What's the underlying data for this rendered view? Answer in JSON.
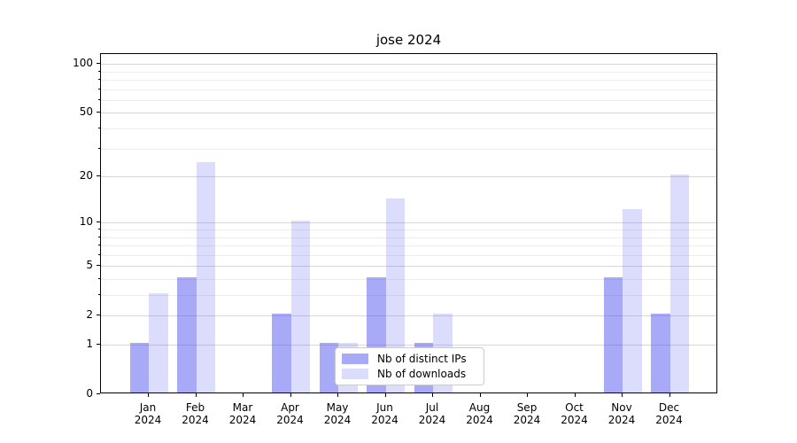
{
  "chart_data": {
    "type": "bar",
    "title": "jose 2024",
    "categories": [
      "Jan 2024",
      "Feb 2024",
      "Mar 2024",
      "Apr 2024",
      "May 2024",
      "Jun 2024",
      "Jul 2024",
      "Aug 2024",
      "Sep 2024",
      "Oct 2024",
      "Nov 2024",
      "Dec 2024"
    ],
    "series": [
      {
        "name": "Nb of distinct IPs",
        "values": [
          1,
          4,
          0,
          2,
          1,
          4,
          1,
          0,
          0,
          0,
          4,
          2
        ],
        "color": "rgba(81,85,241,0.5)"
      },
      {
        "name": "Nb of downloads",
        "values": [
          3,
          24,
          0,
          10,
          1,
          14,
          2,
          0,
          0,
          0,
          12,
          20
        ],
        "color": "rgba(81,85,241,0.2)"
      }
    ],
    "yscale": "log1p",
    "y_ticks": [
      0,
      1,
      2,
      5,
      10,
      20,
      50,
      100
    ],
    "y_minor_ticks": [
      3,
      4,
      6,
      7,
      8,
      9,
      30,
      40,
      60,
      70,
      80,
      90
    ],
    "ylim": [
      0,
      115
    ],
    "xlabel": "",
    "ylabel": "",
    "grid": "on",
    "legend_position": "lower center",
    "colors": {
      "axis": "#000000",
      "grid_major": "#d7d7d7",
      "grid_minor": "#ededed",
      "background": "#ffffff",
      "legend_border": "#cccccc"
    }
  }
}
